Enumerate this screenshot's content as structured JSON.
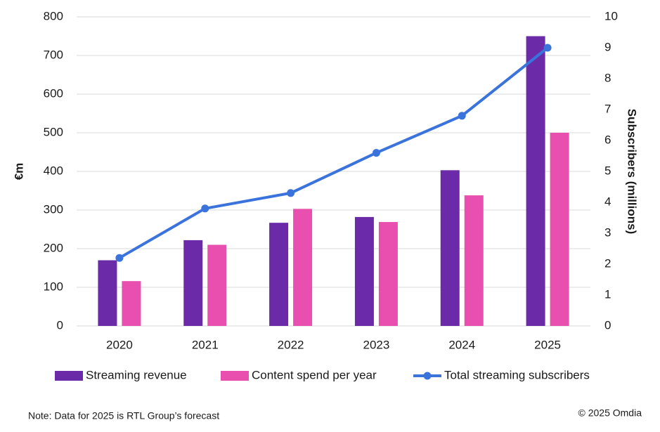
{
  "chart_data": {
    "type": "bar",
    "categories": [
      "2020",
      "2021",
      "2022",
      "2023",
      "2024",
      "2025"
    ],
    "series": [
      {
        "name": "Streaming revenue",
        "color": "#6b2ba8",
        "type": "bar",
        "values": [
          170,
          222,
          267,
          282,
          403,
          750
        ]
      },
      {
        "name": "Content spend per year",
        "color": "#e84fae",
        "type": "bar",
        "values": [
          116,
          210,
          303,
          269,
          338,
          500
        ]
      },
      {
        "name": "Total streaming subscribers",
        "color": "#3a73dc",
        "type": "line",
        "axis": "y2",
        "values": [
          2.2,
          3.8,
          4.3,
          5.6,
          6.8,
          9.0
        ]
      }
    ],
    "ylabel": "€m",
    "y2label": "Subscribers (millions)",
    "ylim": [
      0,
      800
    ],
    "yticks": [
      0,
      100,
      200,
      300,
      400,
      500,
      600,
      700,
      800
    ],
    "y2lim": [
      0,
      10
    ],
    "y2ticks": [
      0,
      1,
      2,
      3,
      4,
      5,
      6,
      7,
      8,
      9,
      10
    ],
    "grid": true,
    "legend": "bottom",
    "note": "Note: Data for 2025 is RTL Group’s forecast",
    "source": "© 2025 Omdia"
  }
}
